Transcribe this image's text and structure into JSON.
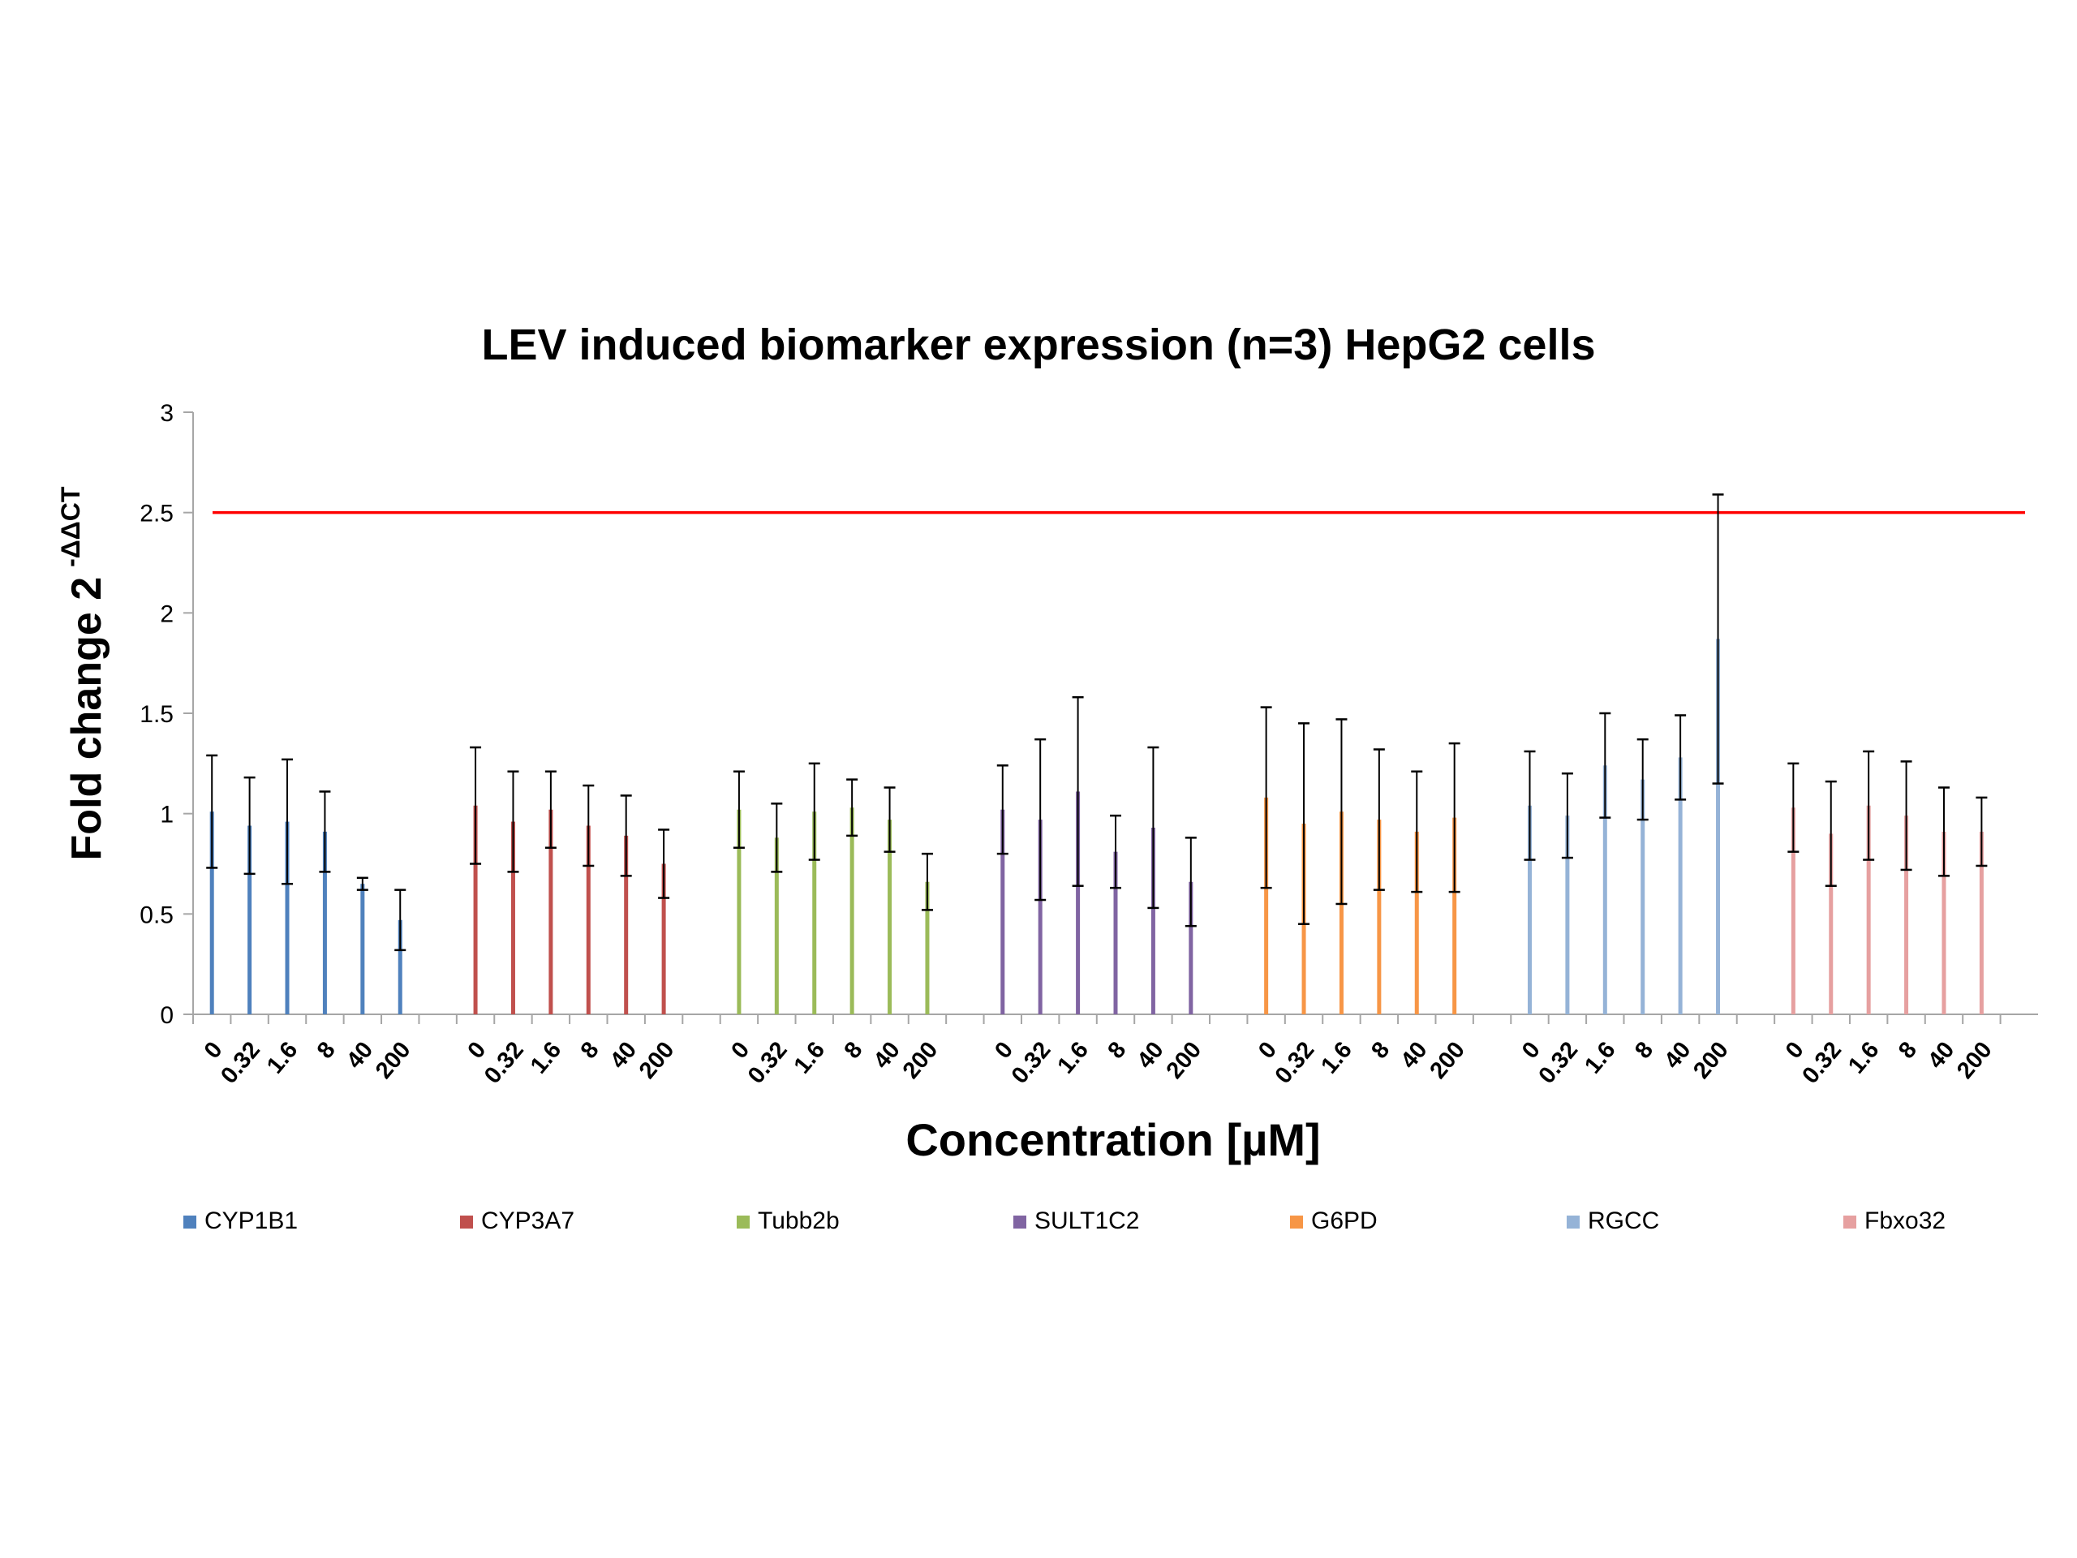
{
  "chart_data": {
    "type": "bar",
    "title": "LEV induced biomarker expression (n=3) HepG2 cells",
    "xlabel": "Concentration [µM]",
    "ylabel": "Fold change 2",
    "ylabel_superscript": "-ΔΔCT",
    "ylim": [
      0,
      3
    ],
    "yticks": [
      "0",
      "0.5",
      "1",
      "1.5",
      "2",
      "2.5",
      "3"
    ],
    "categories": [
      "0",
      "0.32",
      "1.6",
      "8",
      "40",
      "200"
    ],
    "threshold_line": {
      "value": 2.5,
      "color": "#ff0000"
    },
    "grid": false,
    "legend_position": "bottom",
    "series": [
      {
        "name": "CYP1B1",
        "color": "#4f81bd",
        "values": [
          1.01,
          0.94,
          0.96,
          0.91,
          0.65,
          0.47
        ],
        "errors": [
          0.28,
          0.24,
          0.31,
          0.2,
          0.03,
          0.15
        ]
      },
      {
        "name": "CYP3A7",
        "color": "#c0504d",
        "values": [
          1.04,
          0.96,
          1.02,
          0.94,
          0.89,
          0.75
        ],
        "errors": [
          0.29,
          0.25,
          0.19,
          0.2,
          0.2,
          0.17
        ]
      },
      {
        "name": "Tubb2b",
        "color": "#9bbb59",
        "values": [
          1.02,
          0.88,
          1.01,
          1.03,
          0.97,
          0.66
        ],
        "errors": [
          0.19,
          0.17,
          0.24,
          0.14,
          0.16,
          0.14
        ]
      },
      {
        "name": "SULT1C2",
        "color": "#8064a2",
        "values": [
          1.02,
          0.97,
          1.11,
          0.81,
          0.93,
          0.66
        ],
        "errors": [
          0.22,
          0.4,
          0.47,
          0.18,
          0.4,
          0.22
        ]
      },
      {
        "name": "G6PD",
        "color": "#f79646",
        "values": [
          1.08,
          0.95,
          1.01,
          0.97,
          0.91,
          0.98
        ],
        "errors": [
          0.45,
          0.5,
          0.46,
          0.35,
          0.3,
          0.37
        ]
      },
      {
        "name": "RGCC",
        "color": "#95b3d7",
        "values": [
          1.04,
          0.99,
          1.24,
          1.17,
          1.28,
          1.87
        ],
        "errors": [
          0.27,
          0.21,
          0.26,
          0.2,
          0.21,
          0.72
        ]
      },
      {
        "name": "Fbxo32",
        "color": "#e6a0a0",
        "values": [
          1.03,
          0.9,
          1.04,
          0.99,
          0.91,
          0.91
        ],
        "errors": [
          0.22,
          0.26,
          0.27,
          0.27,
          0.22,
          0.17
        ]
      }
    ]
  }
}
